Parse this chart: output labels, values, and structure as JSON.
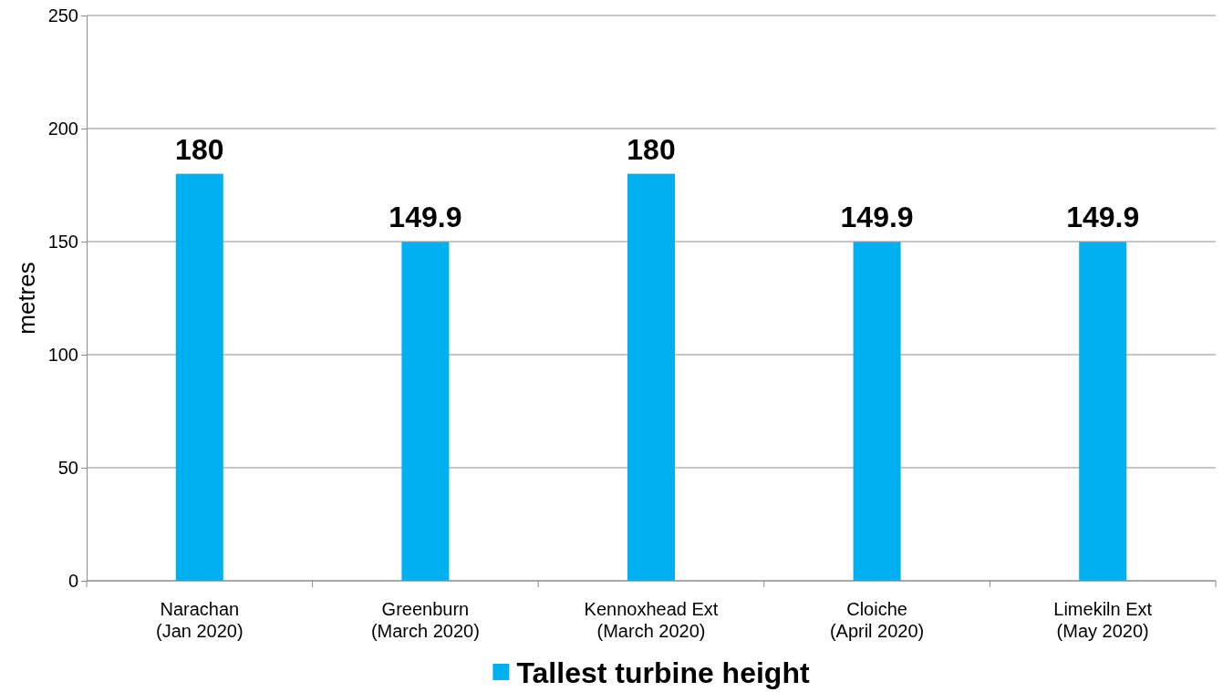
{
  "chart_data": {
    "type": "bar",
    "ylabel": "metres",
    "categories": [
      "Narachan\n(Jan 2020)",
      "Greenburn\n(March 2020)",
      "Kennoxhead Ext\n(March 2020)",
      "Cloiche\n(April 2020)",
      "Limekiln Ext\n(May 2020)"
    ],
    "series": [
      {
        "name": "Tallest turbine height",
        "color": "#00b0f0",
        "values": [
          180,
          149.9,
          180,
          149.9,
          149.9
        ]
      }
    ],
    "ylim": [
      0,
      250
    ],
    "yticks": [
      0,
      50,
      100,
      150,
      200,
      250
    ],
    "grid": "y",
    "legend": "bottom",
    "data_labels": true
  }
}
